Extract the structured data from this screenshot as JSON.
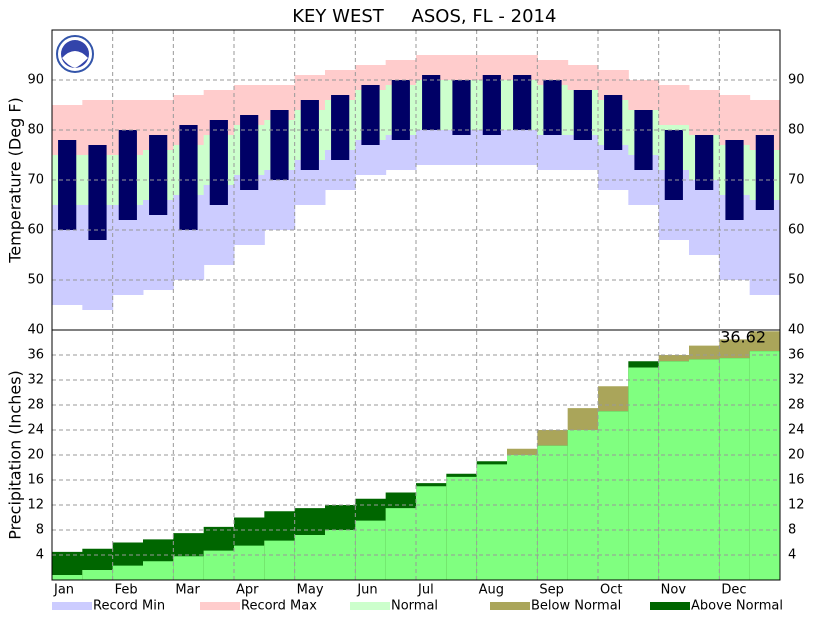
{
  "chart_data": [
    {
      "type": "temperature-bands",
      "title": "KEY WEST",
      "subtitle": "ASOS, FL - 2014",
      "ylabel": "Temperature (Deg F)",
      "categories": [
        "Jan",
        null,
        "Feb",
        null,
        "Mar",
        null,
        "Apr",
        null,
        "May",
        null,
        "Jun",
        null,
        "Jul",
        null,
        "Aug",
        null,
        "Sep",
        null,
        "Oct",
        null,
        "Nov",
        null,
        "Dec",
        null
      ],
      "ylim": [
        40,
        100
      ],
      "yticks": [
        50,
        60,
        70,
        80,
        90
      ],
      "grid": true,
      "series": [
        {
          "name": "Record Min",
          "color": "#ccccff",
          "values": [
            45,
            44,
            47,
            48,
            50,
            53,
            57,
            60,
            65,
            68,
            71,
            72,
            73,
            73,
            73,
            73,
            72,
            72,
            68,
            65,
            58,
            55,
            50,
            47
          ]
        },
        {
          "name": "Record Max",
          "color": "#ffcccc",
          "values": [
            85,
            86,
            86,
            86,
            87,
            88,
            89,
            89,
            91,
            92,
            93,
            94,
            95,
            95,
            95,
            95,
            94,
            93,
            92,
            90,
            89,
            88,
            87,
            86
          ]
        },
        {
          "name": "Normal",
          "color": "#ccffcc",
          "low": [
            65,
            65,
            65,
            66,
            67,
            69,
            71,
            72,
            74,
            76,
            78,
            79,
            80,
            80,
            80,
            80,
            79,
            79,
            77,
            75,
            72,
            70,
            67,
            66
          ],
          "high": [
            75,
            75,
            75,
            76,
            77,
            79,
            81,
            82,
            84,
            86,
            88,
            89,
            90,
            90,
            90,
            90,
            89,
            88,
            86,
            84,
            81,
            79,
            77,
            76
          ]
        },
        {
          "color": "#000066",
          "low": [
            60,
            58,
            62,
            63,
            60,
            65,
            68,
            70,
            72,
            74,
            77,
            78,
            80,
            79,
            79,
            80,
            79,
            78,
            76,
            72,
            66,
            68,
            62,
            64
          ],
          "high": [
            78,
            77,
            80,
            79,
            81,
            82,
            83,
            84,
            86,
            87,
            89,
            90,
            91,
            90,
            91,
            91,
            90,
            88,
            87,
            84,
            80,
            79,
            78,
            79
          ]
        }
      ]
    },
    {
      "type": "cumulative-precip",
      "ylabel": "Precipitation (Inches)",
      "annotation": "36.62",
      "ylim": [
        0,
        40
      ],
      "yticks": [
        4,
        8,
        12,
        16,
        20,
        24,
        28,
        32,
        36,
        40
      ],
      "grid": true,
      "actual": {
        "color": "#80ff80",
        "values": [
          4.5,
          5,
          6,
          6.5,
          7.5,
          8.5,
          10,
          11,
          11.5,
          12,
          13,
          14,
          15.5,
          17,
          19,
          20,
          21.5,
          24,
          27,
          35,
          35,
          35.3,
          35.5,
          36.62
        ]
      },
      "normal": {
        "values": [
          0.8,
          1.6,
          2.3,
          3,
          3.8,
          4.7,
          5.5,
          6.3,
          7.2,
          8,
          9.5,
          11.5,
          15,
          16.5,
          18.5,
          21,
          24,
          27.5,
          31,
          34,
          36,
          37.5,
          38.5,
          39.8
        ]
      },
      "below_normal": {
        "name": "Below Normal",
        "color": "#aaa55a"
      },
      "above_normal": {
        "name": "Above Normal",
        "color": "#006600"
      }
    }
  ]
}
